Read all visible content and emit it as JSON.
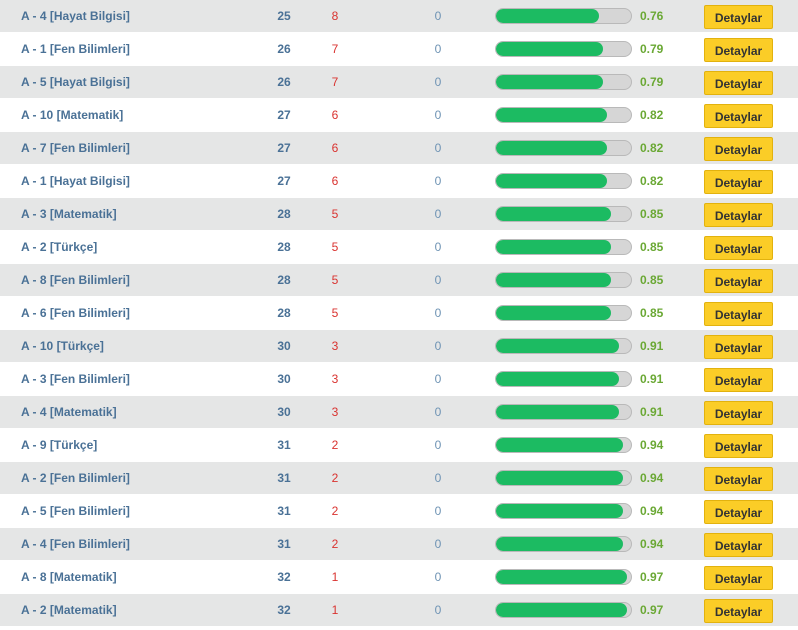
{
  "colors": {
    "row_odd": "#e5e6e6",
    "row_even": "#ffffff",
    "name_text": "#4a7196",
    "wrong_text": "#d9322f",
    "score_text": "#6aa834",
    "bar_fill": "#1cbb62",
    "bar_track": "#d6d6d6",
    "button": "#fbcd27"
  },
  "button_label": "Detaylar",
  "rows": [
    {
      "name": "A - 4 [Hayat Bilgisi]",
      "correct": "25",
      "wrong": "8",
      "empty": "0",
      "score": "0.76",
      "progress": 0.76
    },
    {
      "name": "A - 1 [Fen Bilimleri]",
      "correct": "26",
      "wrong": "7",
      "empty": "0",
      "score": "0.79",
      "progress": 0.79
    },
    {
      "name": "A - 5 [Hayat Bilgisi]",
      "correct": "26",
      "wrong": "7",
      "empty": "0",
      "score": "0.79",
      "progress": 0.79
    },
    {
      "name": "A - 10 [Matematik]",
      "correct": "27",
      "wrong": "6",
      "empty": "0",
      "score": "0.82",
      "progress": 0.82
    },
    {
      "name": "A - 7 [Fen Bilimleri]",
      "correct": "27",
      "wrong": "6",
      "empty": "0",
      "score": "0.82",
      "progress": 0.82
    },
    {
      "name": "A - 1 [Hayat Bilgisi]",
      "correct": "27",
      "wrong": "6",
      "empty": "0",
      "score": "0.82",
      "progress": 0.82
    },
    {
      "name": "A - 3 [Matematik]",
      "correct": "28",
      "wrong": "5",
      "empty": "0",
      "score": "0.85",
      "progress": 0.85
    },
    {
      "name": "A - 2 [Türkçe]",
      "correct": "28",
      "wrong": "5",
      "empty": "0",
      "score": "0.85",
      "progress": 0.85
    },
    {
      "name": "A - 8 [Fen Bilimleri]",
      "correct": "28",
      "wrong": "5",
      "empty": "0",
      "score": "0.85",
      "progress": 0.85
    },
    {
      "name": "A - 6 [Fen Bilimleri]",
      "correct": "28",
      "wrong": "5",
      "empty": "0",
      "score": "0.85",
      "progress": 0.85
    },
    {
      "name": "A - 10 [Türkçe]",
      "correct": "30",
      "wrong": "3",
      "empty": "0",
      "score": "0.91",
      "progress": 0.91
    },
    {
      "name": "A - 3 [Fen Bilimleri]",
      "correct": "30",
      "wrong": "3",
      "empty": "0",
      "score": "0.91",
      "progress": 0.91
    },
    {
      "name": "A - 4 [Matematik]",
      "correct": "30",
      "wrong": "3",
      "empty": "0",
      "score": "0.91",
      "progress": 0.91
    },
    {
      "name": "A - 9 [Türkçe]",
      "correct": "31",
      "wrong": "2",
      "empty": "0",
      "score": "0.94",
      "progress": 0.94
    },
    {
      "name": "A - 2 [Fen Bilimleri]",
      "correct": "31",
      "wrong": "2",
      "empty": "0",
      "score": "0.94",
      "progress": 0.94
    },
    {
      "name": "A - 5 [Fen Bilimleri]",
      "correct": "31",
      "wrong": "2",
      "empty": "0",
      "score": "0.94",
      "progress": 0.94
    },
    {
      "name": "A - 4 [Fen Bilimleri]",
      "correct": "31",
      "wrong": "2",
      "empty": "0",
      "score": "0.94",
      "progress": 0.94
    },
    {
      "name": "A - 8 [Matematik]",
      "correct": "32",
      "wrong": "1",
      "empty": "0",
      "score": "0.97",
      "progress": 0.97
    },
    {
      "name": "A - 2 [Matematik]",
      "correct": "32",
      "wrong": "1",
      "empty": "0",
      "score": "0.97",
      "progress": 0.97
    }
  ]
}
